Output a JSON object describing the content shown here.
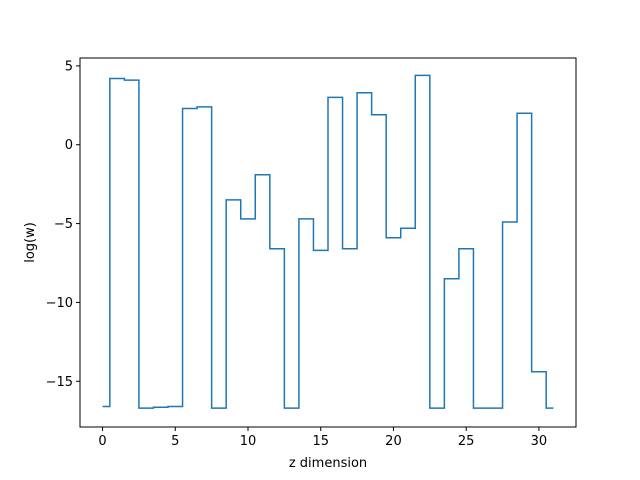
{
  "chart_data": {
    "type": "line",
    "drawstyle": "steps-mid",
    "title": "",
    "xlabel": "z dimension",
    "ylabel": "log(w)",
    "xlim": [
      -1.55,
      32.55
    ],
    "ylim": [
      -17.9,
      5.5
    ],
    "xticks": [
      0,
      5,
      10,
      15,
      20,
      25,
      30
    ],
    "yticks": [
      -15,
      -10,
      -5,
      0,
      5
    ],
    "grid": false,
    "line_color": "#1f77b4",
    "series": [
      {
        "x": [
          0,
          1,
          2,
          3,
          4,
          5,
          6,
          7,
          8,
          9,
          10,
          11,
          12,
          13,
          14,
          15,
          16,
          17,
          18,
          19,
          20,
          21,
          22,
          23,
          24,
          25,
          26,
          27,
          28,
          29,
          30,
          31
        ],
        "values": [
          -16.6,
          4.2,
          4.1,
          -16.7,
          -16.65,
          -16.6,
          2.3,
          2.4,
          -16.7,
          -3.5,
          -4.7,
          -1.9,
          -6.6,
          -16.7,
          -4.7,
          -6.7,
          3.0,
          -6.6,
          3.3,
          1.9,
          -5.9,
          -5.3,
          4.4,
          -16.7,
          -8.5,
          -6.6,
          -16.7,
          -16.7,
          -4.9,
          2.0,
          -14.4,
          -16.7
        ]
      }
    ]
  }
}
